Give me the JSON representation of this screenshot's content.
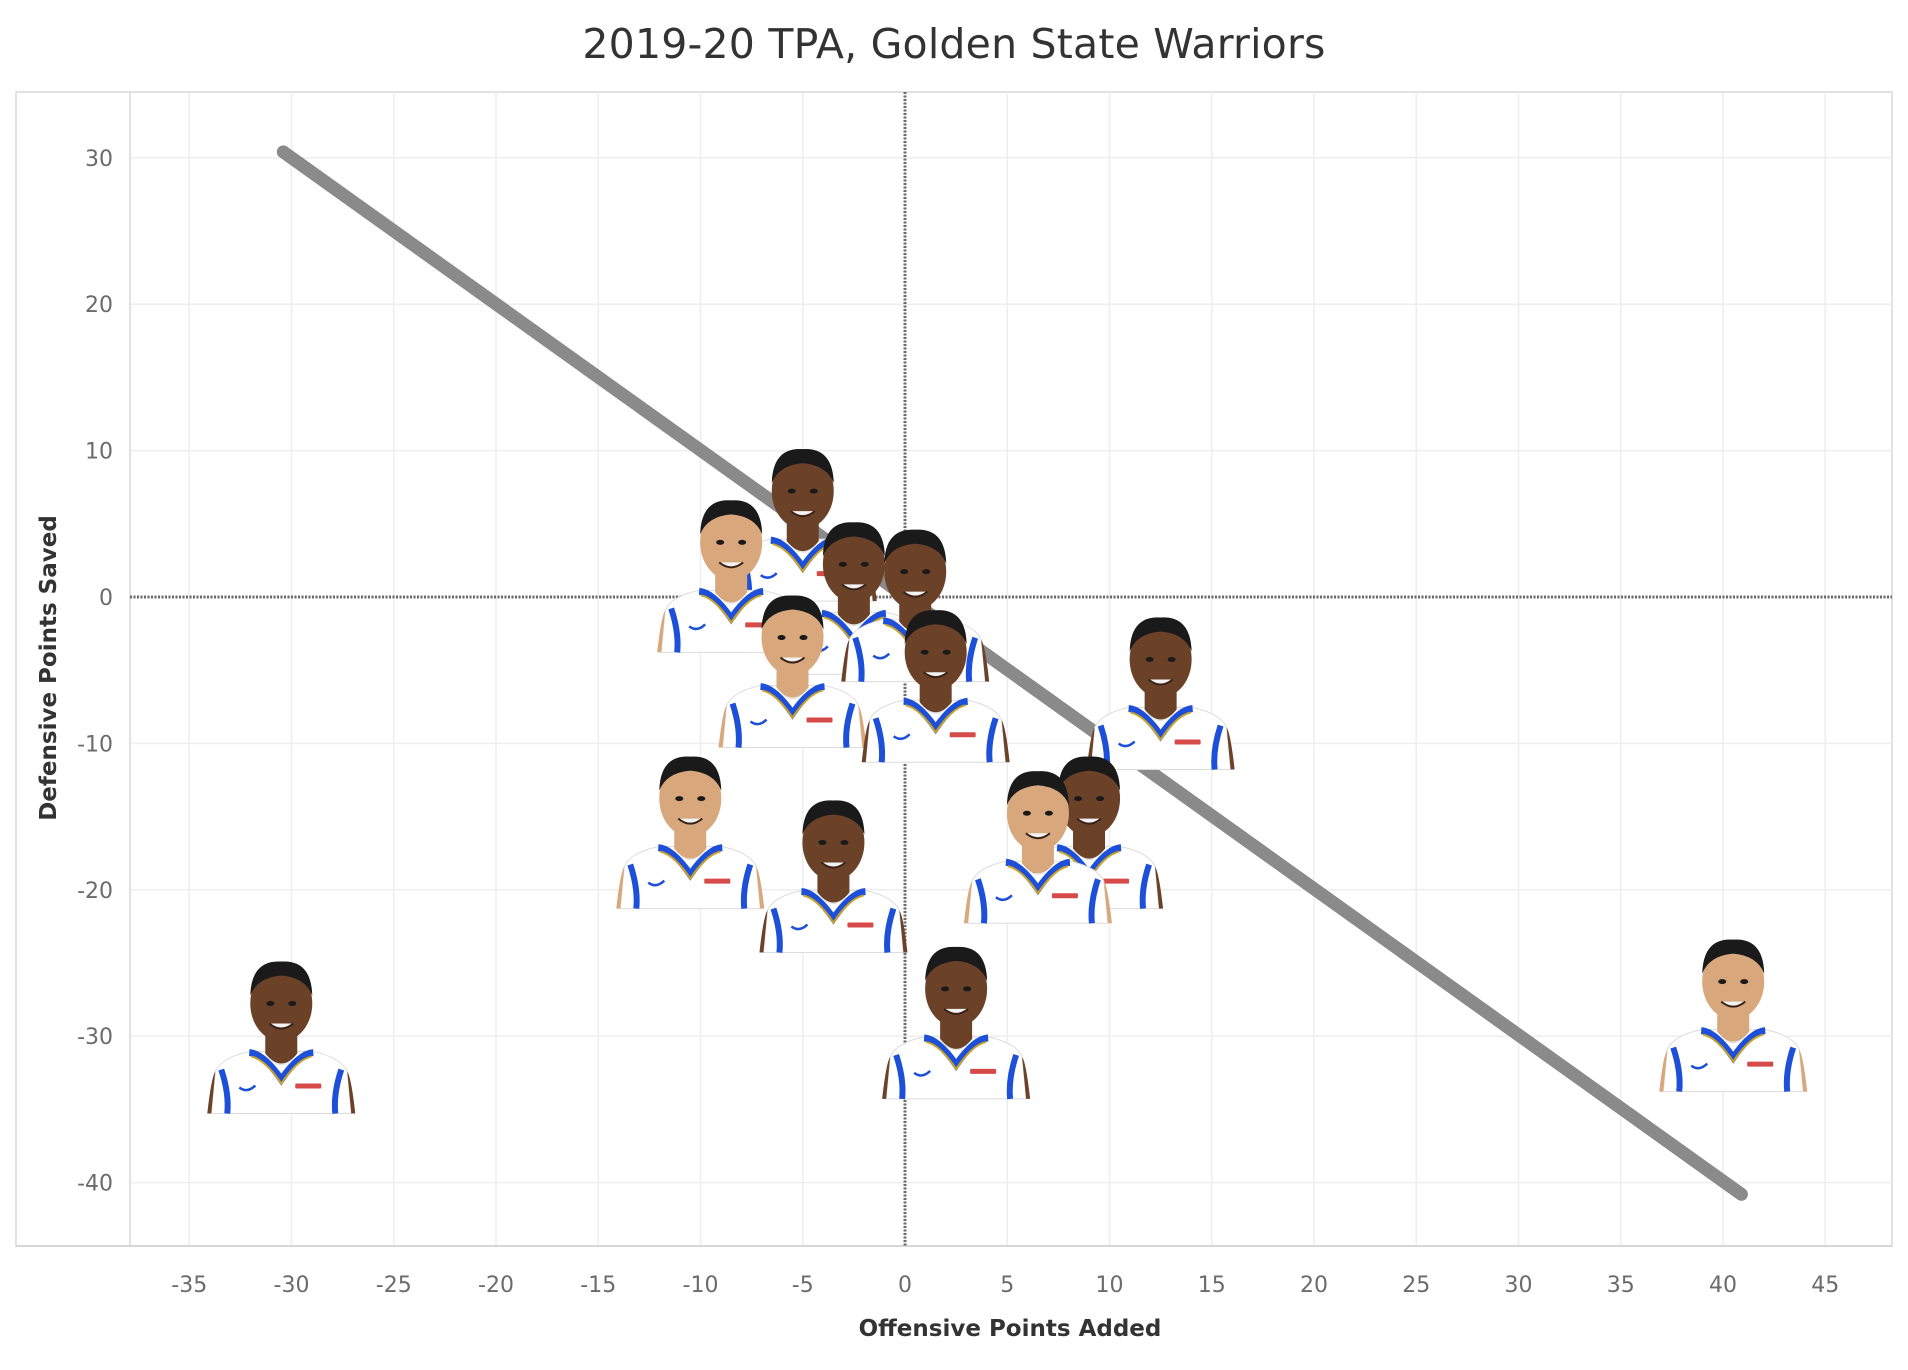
{
  "chart_data": {
    "type": "scatter",
    "title": "2019-20 TPA, Golden State Warriors",
    "xlabel": "Offensive Points Added",
    "ylabel": "Defensive Points Saved",
    "xlim": [
      -38,
      48
    ],
    "ylim": [
      -46,
      35
    ],
    "xticks": [
      -35,
      -30,
      -25,
      -20,
      -15,
      -10,
      -5,
      0,
      5,
      10,
      15,
      20,
      25,
      30,
      35,
      40,
      45
    ],
    "yticks": [
      30,
      20,
      10,
      0,
      -10,
      -20,
      -30,
      -40
    ],
    "grid": true,
    "reference_lines": {
      "x": 0,
      "y": 0
    },
    "trend_line": {
      "x": [
        -30.4,
        40.9
      ],
      "y": [
        30.4,
        -40.8
      ]
    },
    "points": [
      {
        "x": -5,
        "y": 6
      },
      {
        "x": -8.5,
        "y": 2.5
      },
      {
        "x": -2.5,
        "y": 1
      },
      {
        "x": 0.5,
        "y": 0.5
      },
      {
        "x": -5.5,
        "y": -4
      },
      {
        "x": 1.5,
        "y": -5
      },
      {
        "x": 12.5,
        "y": -5.5
      },
      {
        "x": -10.5,
        "y": -15
      },
      {
        "x": -3.5,
        "y": -18
      },
      {
        "x": 9,
        "y": -15
      },
      {
        "x": 6.5,
        "y": -16
      },
      {
        "x": 2.5,
        "y": -28
      },
      {
        "x": -30.5,
        "y": -29
      },
      {
        "x": 40.5,
        "y": -27.5
      }
    ],
    "marker_colors": {
      "jersey": "#ffffff",
      "trim": "#1d4fd8",
      "gold": "#c9a227",
      "skin_light": "#d9a77c",
      "skin_dark": "#6b4128",
      "hair": "#1a1a1a"
    }
  }
}
